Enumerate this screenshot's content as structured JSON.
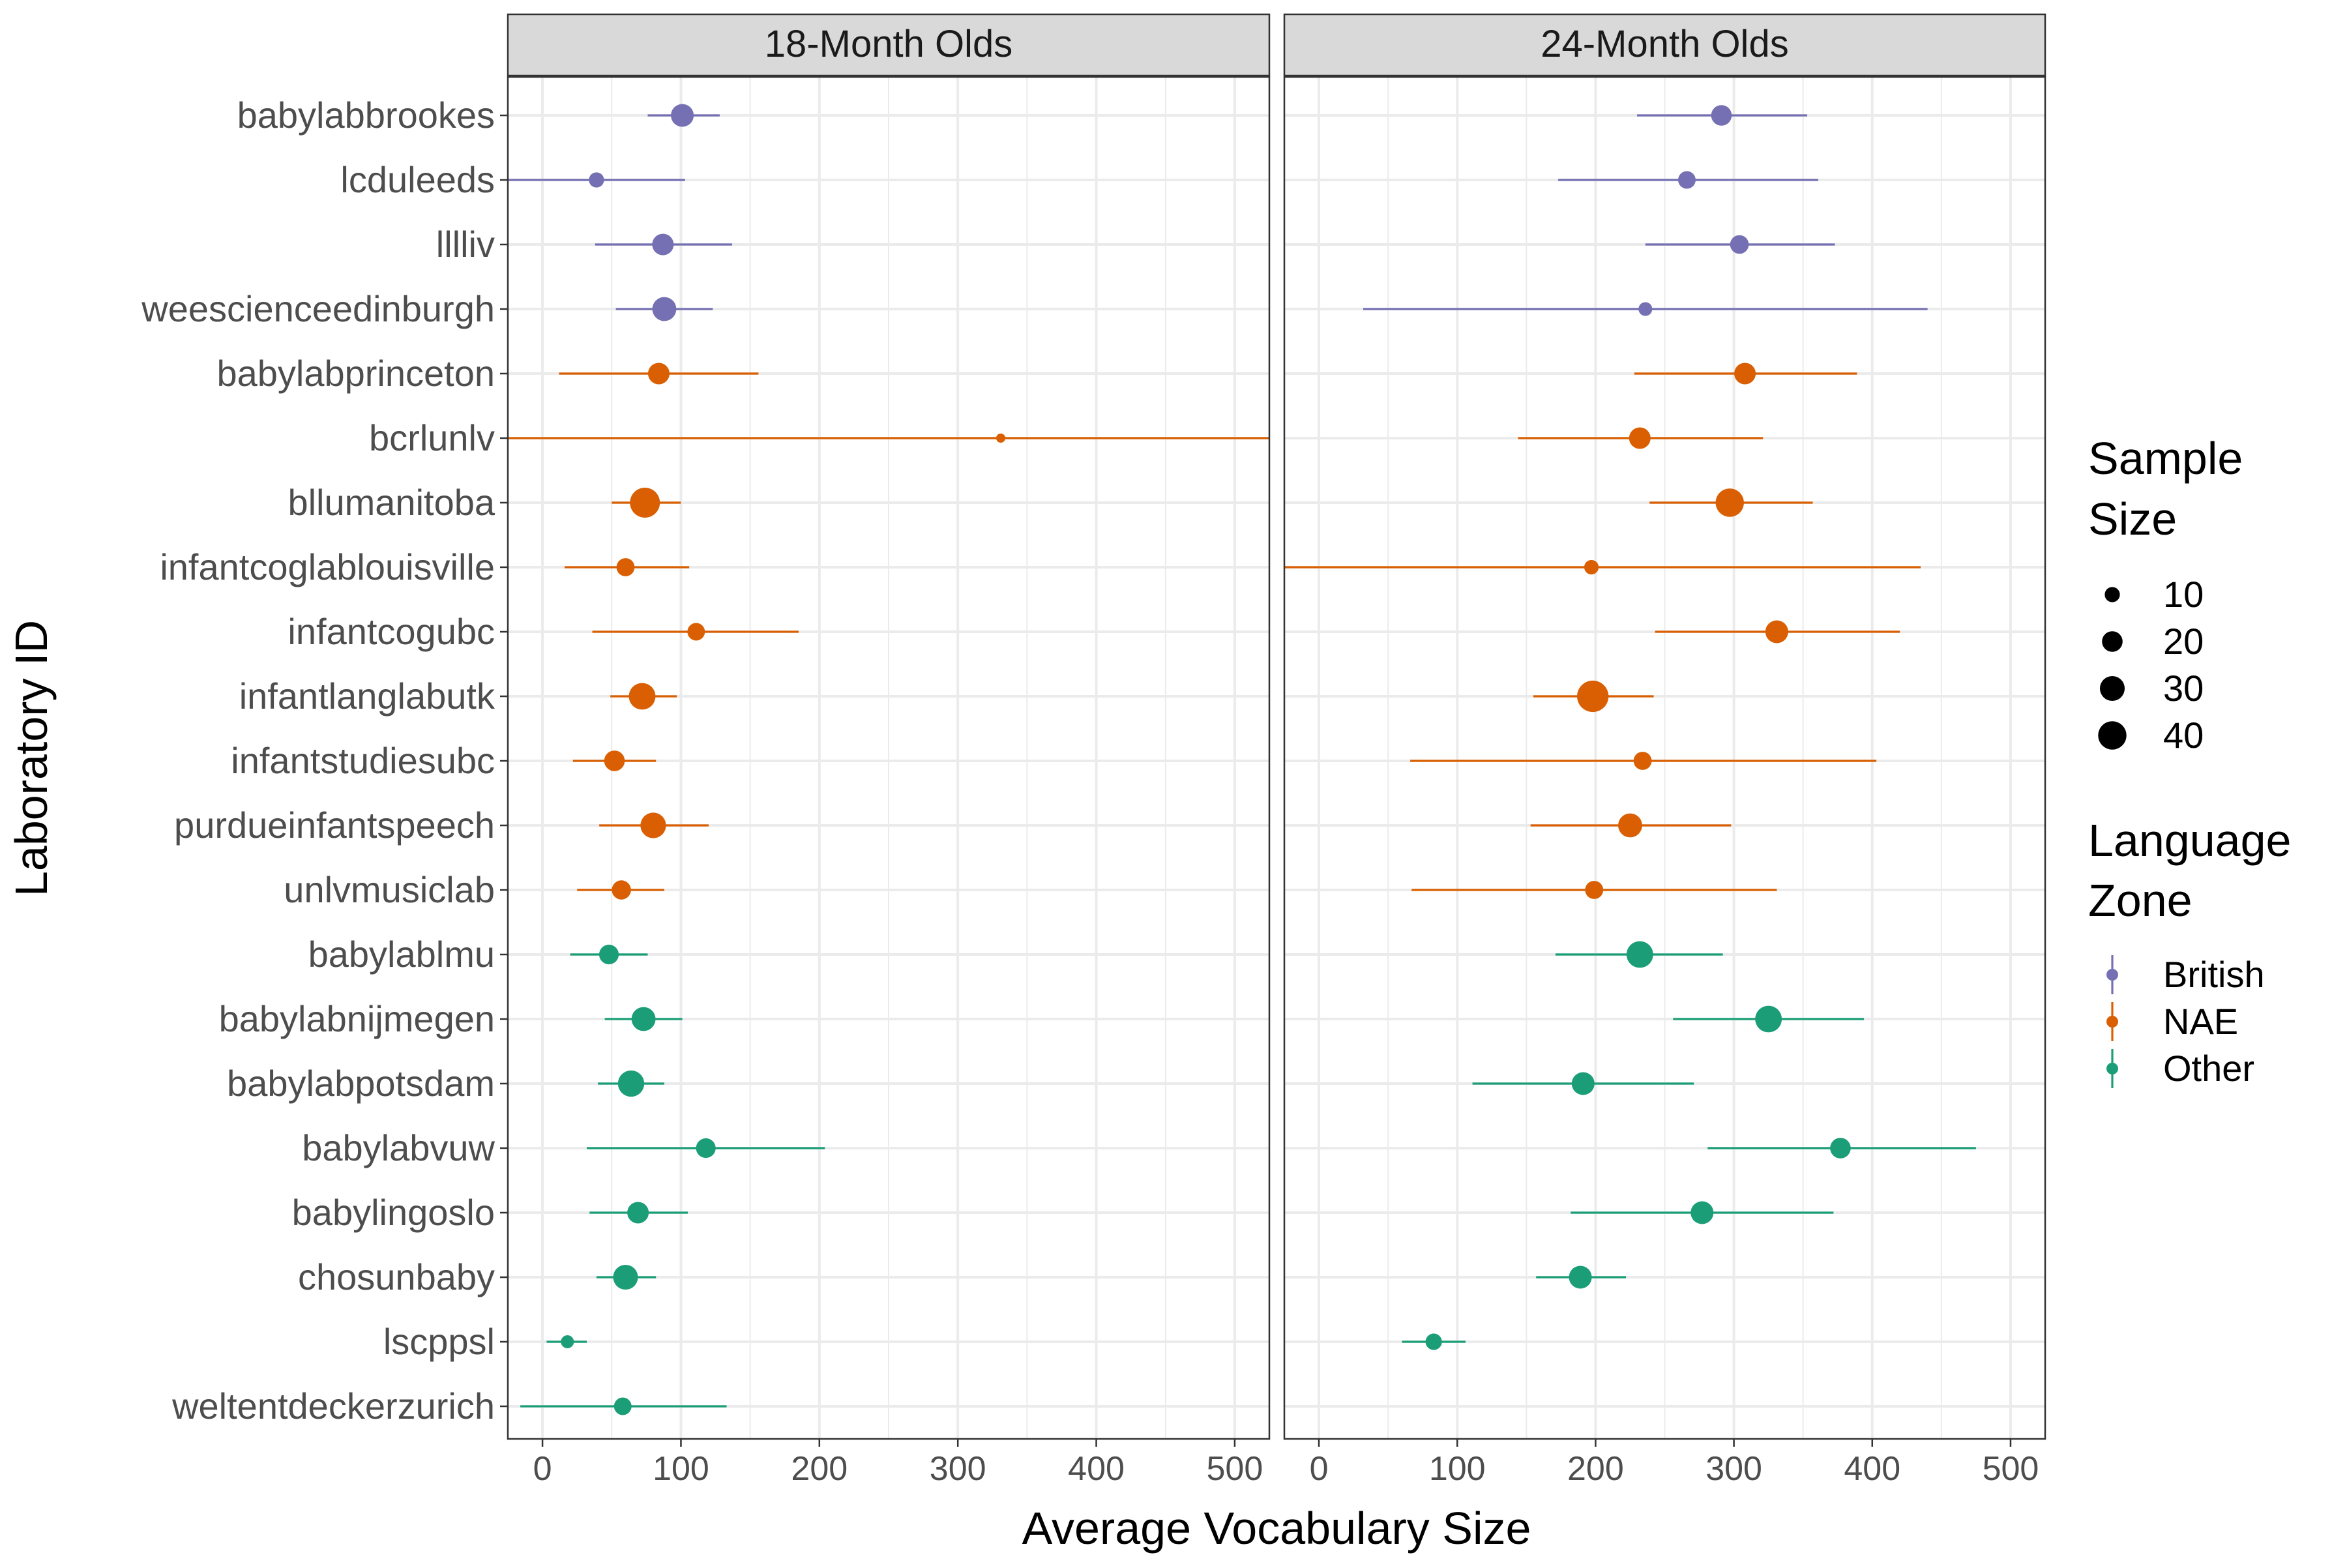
{
  "chart_data": {
    "type": "scatter",
    "subtype": "forest-plot",
    "xlabel": "Average Vocabulary Size",
    "ylabel": "Laboratory ID",
    "xlim": [
      -25,
      525
    ],
    "xticks": [
      0,
      100,
      200,
      300,
      400,
      500
    ],
    "xtick_labels": [
      "0",
      "100",
      "200",
      "300",
      "400",
      "500"
    ],
    "grid": true,
    "legend_position": "right",
    "labs": [
      "babylabbrookes",
      "lcduleeds",
      "lllliv",
      "weescienceedinburgh",
      "babylabprinceton",
      "bcrlunlv",
      "bllumanitoba",
      "infantcoglablouisville",
      "infantcogubc",
      "infantlanglabutk",
      "infantstudiesubc",
      "purdueinfantspeech",
      "unlvmusiclab",
      "babylablmu",
      "babylabnijmegen",
      "babylabpotsdam",
      "babylabvuw",
      "babylingoslo",
      "chosunbaby",
      "lscppsl",
      "weltentdeckerzurich"
    ],
    "zones": [
      "British",
      "British",
      "British",
      "British",
      "NAE",
      "NAE",
      "NAE",
      "NAE",
      "NAE",
      "NAE",
      "NAE",
      "NAE",
      "NAE",
      "Other",
      "Other",
      "Other",
      "Other",
      "Other",
      "Other",
      "Other",
      "Other"
    ],
    "panels": [
      {
        "title": "18-Month Olds",
        "mean": [
          101,
          39,
          87,
          88,
          84,
          331,
          74,
          60,
          111,
          72,
          52,
          80,
          57,
          48,
          73,
          64,
          118,
          69,
          60,
          18,
          58
        ],
        "lower": [
          76,
          -25,
          38,
          53,
          12,
          -25,
          50,
          16,
          36,
          49,
          22,
          41,
          25,
          20,
          45,
          40,
          32,
          34,
          39,
          3,
          -16
        ],
        "upper": [
          128,
          103,
          137,
          123,
          156,
          525,
          100,
          106,
          185,
          97,
          82,
          120,
          88,
          76,
          101,
          88,
          204,
          105,
          82,
          32,
          133
        ],
        "n": [
          25,
          10,
          22,
          28,
          22,
          3,
          45,
          15,
          14,
          35,
          20,
          32,
          17,
          18,
          28,
          34,
          18,
          22,
          30,
          7,
          14
        ]
      },
      {
        "title": "24-Month Olds",
        "mean": [
          291,
          266,
          304,
          236,
          308,
          232,
          297,
          197,
          331,
          198,
          234,
          225,
          199,
          232,
          325,
          191,
          377,
          277,
          189,
          83
        ],
        "lower": [
          230,
          173,
          236,
          32,
          228,
          144,
          239,
          -25,
          243,
          155,
          66,
          153,
          67,
          171,
          256,
          111,
          281,
          182,
          157,
          60
        ],
        "upper": [
          353,
          361,
          373,
          440,
          389,
          321,
          357,
          435,
          420,
          242,
          403,
          298,
          331,
          292,
          394,
          271,
          475,
          372,
          222,
          106
        ],
        "n": [
          20,
          14,
          16,
          8,
          22,
          22,
          40,
          9,
          25,
          50,
          15,
          28,
          15,
          35,
          35,
          25,
          20,
          25,
          25,
          12
        ]
      }
    ],
    "legend": {
      "size_title": [
        "Sample",
        "Size"
      ],
      "size_values": [
        10,
        20,
        30,
        40
      ],
      "zone_title": [
        "Language",
        "Zone"
      ],
      "zone_labels": [
        "British",
        "NAE",
        "Other"
      ]
    },
    "colors": {
      "British": "#7570b3",
      "NAE": "#d95f02",
      "Other": "#1b9e77",
      "strip_fill": "#d9d9d9",
      "grid": "#ebebeb",
      "axis_text": "#4d4d4d"
    }
  }
}
